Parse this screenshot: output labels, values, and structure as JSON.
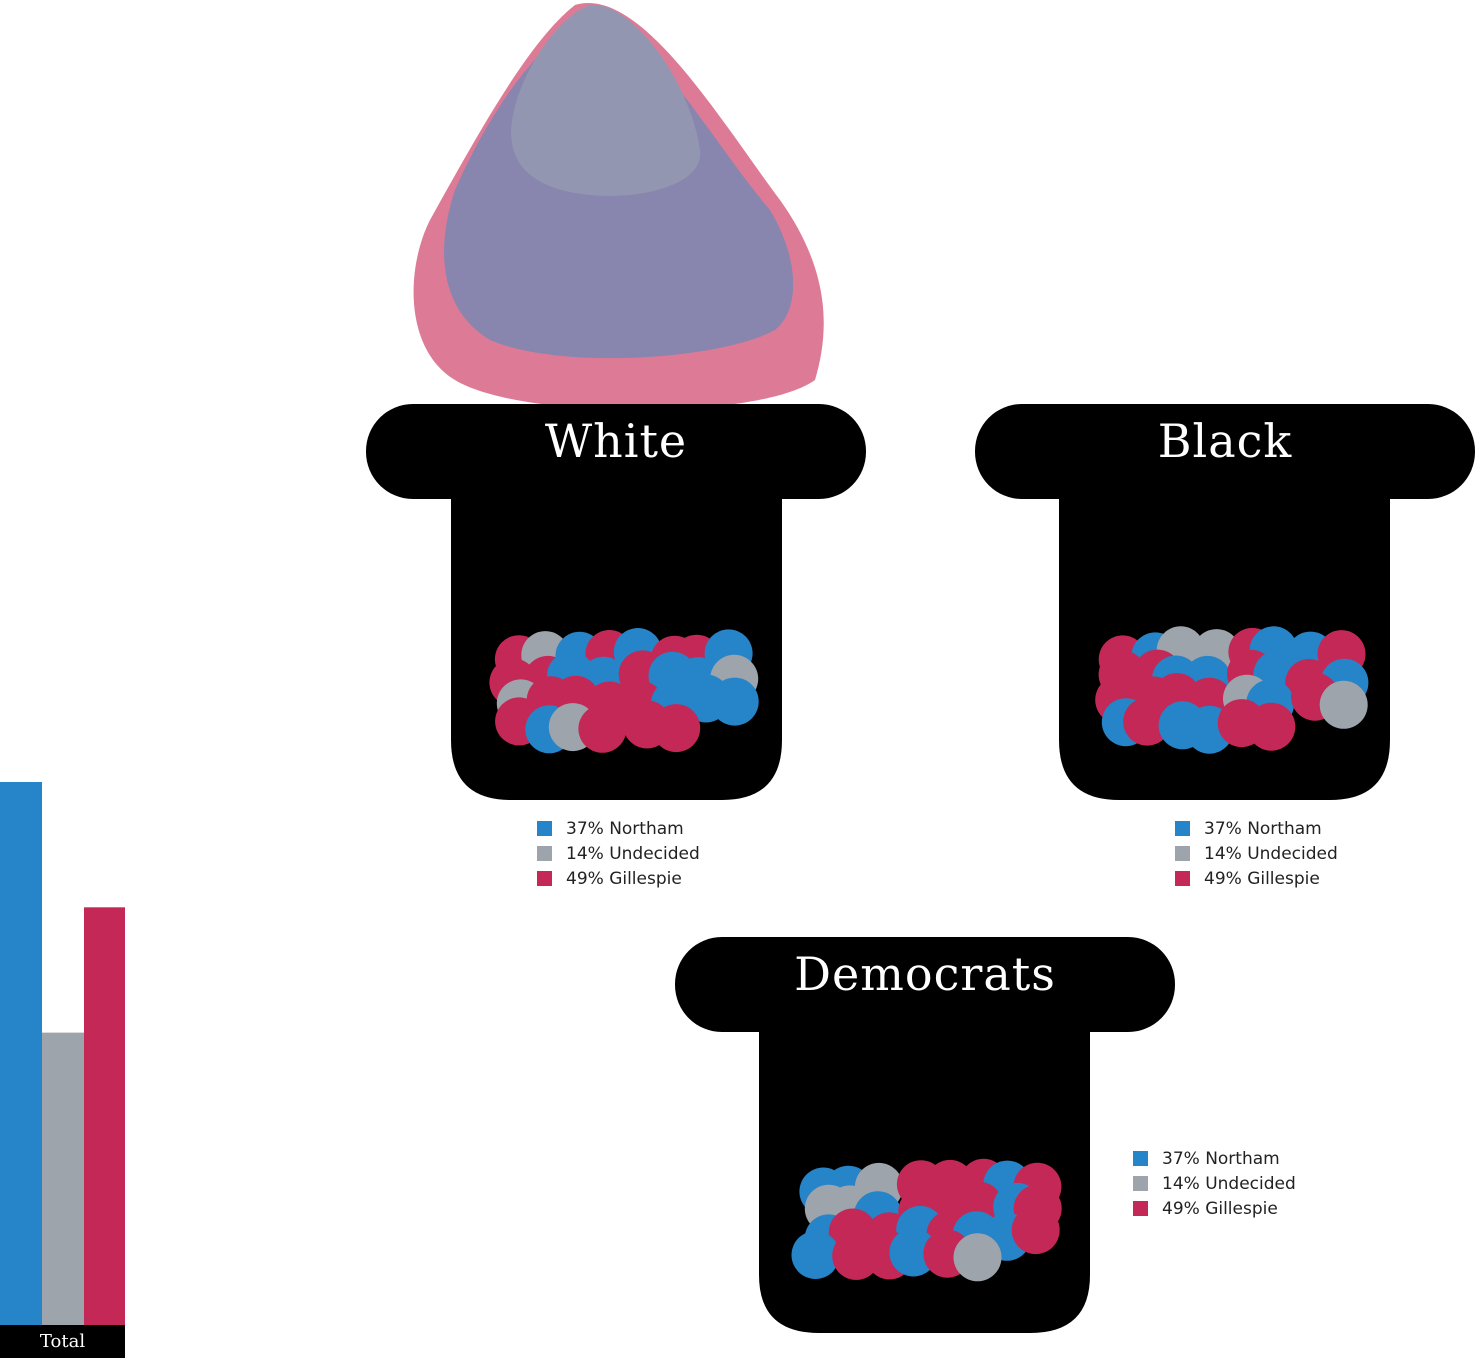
{
  "colors": {
    "northam": "#2684c8",
    "undecided": "#9ea4ab",
    "gillespie": "#c42856",
    "hat": "#000000",
    "blob_outer": "#dd7b96",
    "blob_inner": "#8885ae",
    "blob_top": "#9396b0"
  },
  "chart_data": [
    {
      "type": "bar",
      "label": "Total",
      "categories": [
        "Northam",
        "Undecided",
        "Gillespie"
      ],
      "values": [
        52,
        28,
        40
      ],
      "ylim": [
        0,
        52
      ]
    },
    {
      "type": "table",
      "hats": [
        {
          "title": "White",
          "legend": [
            "37% Northam",
            "14% Undecided",
            "49% Gillespie"
          ],
          "values": [
            37,
            14,
            49
          ]
        },
        {
          "title": "Black",
          "legend": [
            "37% Northam",
            "14% Undecided",
            "49% Gillespie"
          ],
          "values": [
            37,
            14,
            49
          ]
        },
        {
          "title": "Democrats",
          "legend": [
            "37% Northam",
            "14% Undecided",
            "49% Gillespie"
          ],
          "values": [
            37,
            14,
            49
          ]
        }
      ]
    }
  ]
}
